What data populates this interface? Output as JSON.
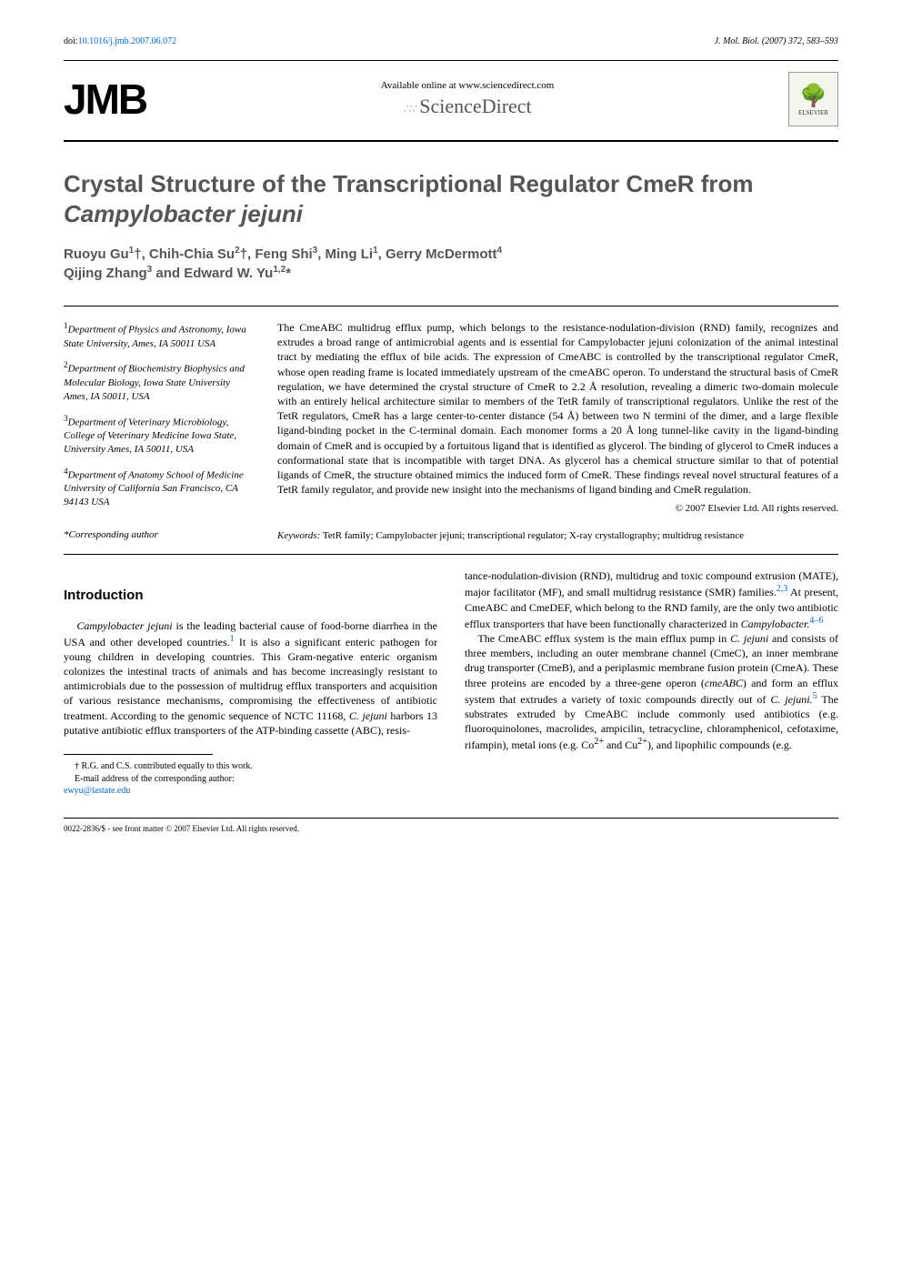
{
  "header": {
    "doi_prefix": "doi:",
    "doi": "10.1016/j.jmb.2007.06.072",
    "journal_ref": "J. Mol. Biol. (2007) 372, 583–593",
    "logo": "JMB",
    "available_text": "Available online at www.sciencedirect.com",
    "science_direct": "ScienceDirect",
    "elsevier": "ELSEVIER"
  },
  "title": "Crystal Structure of the Transcriptional Regulator CmeR from Campylobacter jejuni",
  "title_plain": "Crystal Structure of the Transcriptional Regulator CmeR from ",
  "title_italic": "Campylobacter jejuni",
  "authors_line1": "Ruoyu Gu",
  "authors_sup1": "1",
  "authors_dagger": "†, Chih-Chia Su",
  "authors_sup2": "2",
  "authors_dagger2": "†, Feng Shi",
  "authors_sup3": "3",
  "authors_comma1": ", Ming Li",
  "authors_sup4": "1",
  "authors_comma2": ", Gerry McDermott",
  "authors_sup5": "4",
  "authors_line2": "Qijing Zhang",
  "authors_sup6": "3",
  "authors_and": " and Edward W. Yu",
  "authors_sup7": "1,2",
  "authors_star": "*",
  "affiliations": {
    "a1_sup": "1",
    "a1": "Department of Physics and Astronomy, Iowa State University, Ames, IA 50011 USA",
    "a2_sup": "2",
    "a2": "Department of Biochemistry Biophysics and Molecular Biology, Iowa State University Ames, IA 50011, USA",
    "a3_sup": "3",
    "a3": "Department of Veterinary Microbiology, College of Veterinary Medicine Iowa State, University Ames, IA 50011, USA",
    "a4_sup": "4",
    "a4": "Department of Anatomy School of Medicine University of California San Francisco, CA 94143 USA"
  },
  "abstract": "The CmeABC multidrug efflux pump, which belongs to the resistance-nodulation-division (RND) family, recognizes and extrudes a broad range of antimicrobial agents and is essential for Campylobacter jejuni colonization of the animal intestinal tract by mediating the efflux of bile acids. The expression of CmeABC is controlled by the transcriptional regulator CmeR, whose open reading frame is located immediately upstream of the cmeABC operon. To understand the structural basis of CmeR regulation, we have determined the crystal structure of CmeR to 2.2 Å resolution, revealing a dimeric two-domain molecule with an entirely helical architecture similar to members of the TetR family of transcriptional regulators. Unlike the rest of the TetR regulators, CmeR has a large center-to-center distance (54 Å) between two N termini of the dimer, and a large flexible ligand-binding pocket in the C-terminal domain. Each monomer forms a 20 Å long tunnel-like cavity in the ligand-binding domain of CmeR and is occupied by a fortuitous ligand that is identified as glycerol. The binding of glycerol to CmeR induces a conformational state that is incompatible with target DNA. As glycerol has a chemical structure similar to that of potential ligands of CmeR, the structure obtained mimics the induced form of CmeR. These findings reveal novel structural features of a TetR family regulator, and provide new insight into the mechanisms of ligand binding and CmeR regulation.",
  "copyright": "© 2007 Elsevier Ltd. All rights reserved.",
  "corresp": "*Corresponding author",
  "keywords_label": "Keywords:",
  "keywords": " TetR family; Campylobacter jejuni; transcriptional regulator; X-ray crystallography; multidrug resistance",
  "intro_heading": "Introduction",
  "body": {
    "col1_p1_a": "Campylobacter jejuni",
    "col1_p1_b": " is the leading bacterial cause of food-borne diarrhea in the USA and other developed countries.",
    "col1_p1_ref1": "1",
    "col1_p1_c": " It is also a significant enteric pathogen for young children in developing countries. This Gram-negative enteric organism colonizes the intestinal tracts of animals and has become increasingly resistant to antimicrobials due to the possession of multidrug efflux transporters and acquisition of various resistance mechanisms, compromising the effectiveness of antibiotic treatment. According to the genomic sequence of NCTC 11168, ",
    "col1_p1_d": "C. jejuni",
    "col1_p1_e": " harbors 13 putative antibiotic efflux transporters of the ATP-binding cassette (ABC), resis-",
    "col2_p1_a": "tance-nodulation-division (RND), multidrug and toxic compound extrusion (MATE), major facilitator (MF), and small multidrug resistance (SMR) families.",
    "col2_p1_ref23": "2,3",
    "col2_p1_b": " At present, CmeABC and CmeDEF, which belong to the RND family, are the only two antibiotic efflux transporters that have been functionally characterized in ",
    "col2_p1_c": "Campylobacter.",
    "col2_p1_ref46": "4–6",
    "col2_p2_a": "The CmeABC efflux system is the main efflux pump in ",
    "col2_p2_b": "C. jejuni",
    "col2_p2_c": " and consists of three members, including an outer membrane channel (CmeC), an inner membrane drug transporter (CmeB), and a periplasmic membrane fusion protein (CmeA). These three proteins are encoded by a three-gene operon (",
    "col2_p2_d": "cmeABC",
    "col2_p2_e": ") and form an efflux system that extrudes a variety of toxic compounds directly out of ",
    "col2_p2_f": "C. jejuni.",
    "col2_p2_ref5": "5",
    "col2_p2_g": " The substrates extruded by CmeABC include commonly used antibiotics (e.g. fluoroquinolones, macrolides, ampicilin, tetracycline, chloramphenicol, cefotaxime, rifampin), metal ions (e.g. Co",
    "col2_p2_h": "2+",
    "col2_p2_i": " and Cu",
    "col2_p2_j": "2+",
    "col2_p2_k": "), and lipophilic compounds (e.g."
  },
  "footnote": {
    "line1": "† R.G. and C.S. contributed equally to this work.",
    "line2": "E-mail address of the corresponding author:",
    "email": "ewyu@iastate.edu"
  },
  "footer": "0022-2836/$ - see front matter © 2007 Elsevier Ltd. All rights reserved.",
  "colors": {
    "link": "#0066cc",
    "title_gray": "#555555",
    "text": "#000000",
    "background": "#ffffff"
  }
}
